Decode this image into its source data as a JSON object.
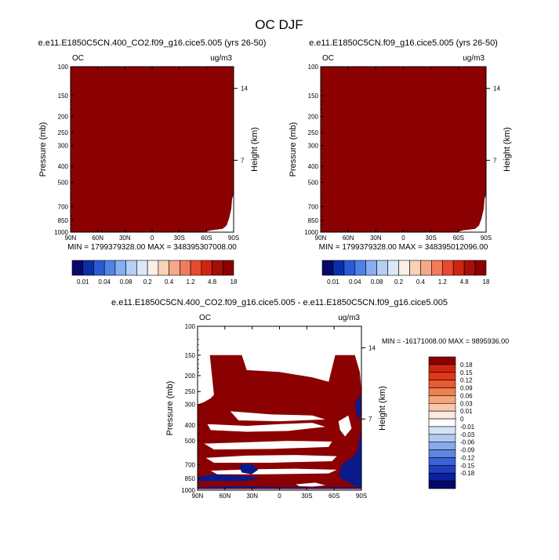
{
  "title": "OC DJF",
  "panels": [
    {
      "id": "left",
      "title": "e.e11.E1850C5CN.400_CO2.f09_g16.cice5.005 (yrs 26-50)",
      "variable": "OC",
      "units": "ug/m3",
      "ylabel": "Pressure (mb)",
      "ylabel_right": "Height (km)",
      "stats": "MIN = 1799379328.00   MAX = 348395307008.00"
    },
    {
      "id": "right",
      "title": "e.e11.E1850C5CN.f09_g16.cice5.005 (yrs 26-50)",
      "variable": "OC",
      "units": "ug/m3",
      "ylabel": "Pressure (mb)",
      "ylabel_right": "Height (km)",
      "stats": "MIN = 1799379328.00   MAX = 348395012096.00"
    },
    {
      "id": "diff",
      "title": "e.e11.E1850C5CN.400_CO2.f09_g16.cice5.005 - e.e11.E1850C5CN.f09_g16.cice5.005",
      "variable": "OC",
      "units": "ug/m3",
      "ylabel": "Pressure (mb)",
      "ylabel_right": "Height (km)",
      "stats": "MIN = -16171008.00  MAX = 9895936.00"
    }
  ],
  "chart_data": {
    "type": "heatmap",
    "x_ticks": [
      "90N",
      "60N",
      "30N",
      "0",
      "30S",
      "60S",
      "90S"
    ],
    "y_ticks": [
      100,
      150,
      200,
      250,
      300,
      400,
      500,
      700,
      850,
      1000
    ],
    "y_scale": "log",
    "y_range": [
      100,
      1000
    ],
    "height_ticks": [
      14,
      7
    ],
    "colorbar_top": {
      "labels": [
        "0.01",
        "0.04",
        "0.08",
        "0.2",
        "0.4",
        "1.2",
        "4.8",
        "18"
      ],
      "colors": [
        "#08086b",
        "#0a2fa8",
        "#2a5ad6",
        "#4f82e6",
        "#86aef0",
        "#b5cff5",
        "#dce8fa",
        "#fcefe6",
        "#f9d0b8",
        "#f5a98a",
        "#f17b5c",
        "#e84a30",
        "#cf2410",
        "#a50f07",
        "#8b0000"
      ]
    },
    "colorbar_diff": {
      "labels": [
        "0.18",
        "0.15",
        "0.12",
        "0.09",
        "0.06",
        "0.03",
        "0.01",
        "0",
        "-0.01",
        "-0.03",
        "-0.06",
        "-0.09",
        "-0.12",
        "-0.15",
        "-0.18"
      ],
      "colors": [
        "#8b0000",
        "#cf2410",
        "#e03818",
        "#e85a32",
        "#f0804f",
        "#f5a57c",
        "#f9c8ab",
        "#fcebde",
        "#ffffff",
        "#d3e2f7",
        "#b0c9f0",
        "#86aaea",
        "#5d86e0",
        "#3a63d6",
        "#1f3fc2",
        "#0c1f9e",
        "#05086b"
      ]
    }
  }
}
